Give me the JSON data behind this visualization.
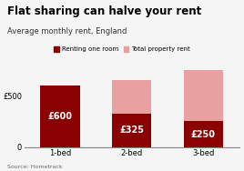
{
  "title": "Flat sharing can halve your rent",
  "subtitle": "Average monthly rent, England",
  "source": "Source: Hometrack",
  "categories": [
    "1-bed",
    "2-bed",
    "3-bed"
  ],
  "room_rent": [
    600,
    325,
    250
  ],
  "total_rent": [
    600,
    650,
    750
  ],
  "room_color": "#8B0000",
  "total_color": "#E8A0A0",
  "bar_labels": [
    "£600",
    "£325",
    "£250"
  ],
  "legend_room": "Renting one room",
  "legend_total": "Total property rent",
  "ylim": [
    0,
    800
  ],
  "yticks": [
    0,
    500
  ],
  "background_color": "#f5f5f5",
  "title_fontsize": 8.5,
  "subtitle_fontsize": 6.0,
  "label_fontsize": 7,
  "tick_fontsize": 6,
  "source_fontsize": 4.5
}
